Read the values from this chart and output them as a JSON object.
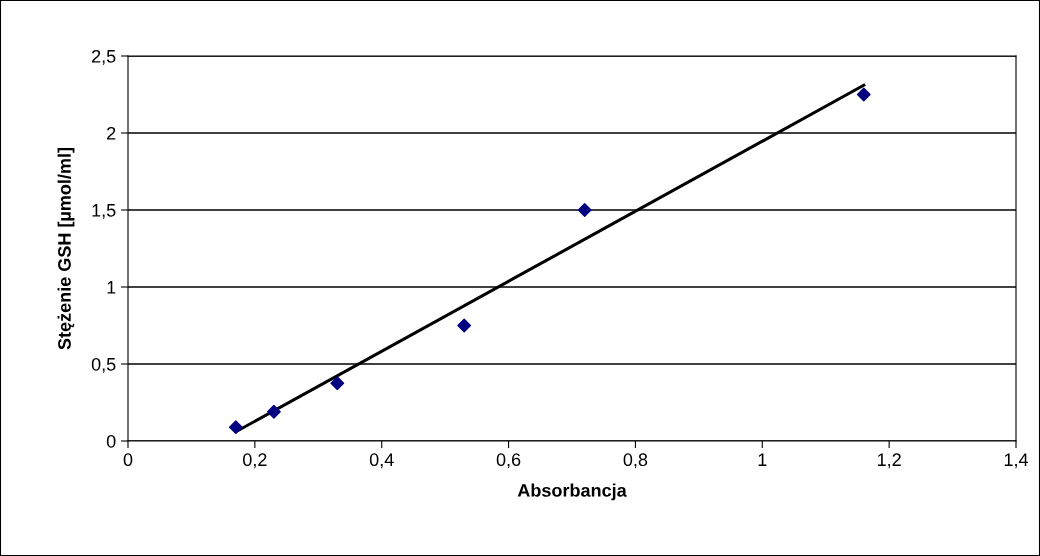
{
  "chart_data": {
    "type": "scatter",
    "xlabel": "Absorbancja",
    "ylabel": "Stężenie GSH [µmol/ml]",
    "xlim": [
      0,
      1.4
    ],
    "ylim": [
      0,
      2.5
    ],
    "xticks": [
      0,
      {
        "value": 0.2,
        "label": "0,2"
      },
      {
        "value": 0.4,
        "label": "0,4"
      },
      {
        "value": 0.6,
        "label": "0,6"
      },
      {
        "value": 0.8,
        "label": "0,8"
      },
      1,
      {
        "value": 1.2,
        "label": "1,2"
      },
      {
        "value": 1.4,
        "label": "1,4"
      }
    ],
    "yticks": [
      0,
      {
        "value": 0.5,
        "label": "0,5"
      },
      1,
      {
        "value": 1.5,
        "label": "1,5"
      },
      2,
      {
        "value": 2.5,
        "label": "2,5"
      }
    ],
    "grid": "y",
    "series": [
      {
        "color": "#000080",
        "marker": "diamond",
        "x": [
          0.17,
          0.23,
          0.33,
          0.53,
          0.72,
          1.16
        ],
        "values": [
          0.09,
          0.19,
          0.375,
          0.75,
          1.5,
          2.25
        ]
      },
      {
        "type": "line",
        "color": "#000000",
        "marker": "none",
        "line_style": "solid",
        "x": [
          0.17,
          1.16
        ],
        "values": [
          0.06,
          2.31
        ]
      }
    ]
  }
}
